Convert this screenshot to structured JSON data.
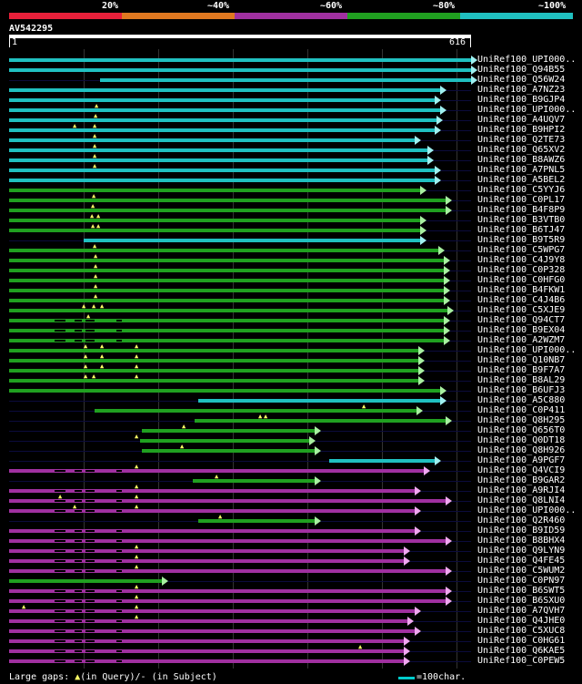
{
  "legend": {
    "labels": [
      "20%",
      "~40%",
      "~60%",
      "~80%",
      "~100%"
    ],
    "colors": [
      "#e8203a",
      "#e07820",
      "#a030a0",
      "#20a020",
      "#20c0c0"
    ]
  },
  "query": {
    "name": "AV542295",
    "start": "1",
    "end": "616"
  },
  "row_color_codes": {
    "c": "#20c0c0",
    "g": "#20a020",
    "m": "#a030a0"
  },
  "rows": [
    {
      "label": "UniRef100_UPI000..",
      "color": "c",
      "start": 10,
      "end": 518
    },
    {
      "label": "UniRef100_Q94B55",
      "color": "c",
      "start": 10,
      "end": 518
    },
    {
      "label": "UniRef100_Q56W24",
      "color": "c",
      "start": 110,
      "end": 518
    },
    {
      "label": "UniRef100_A7NZ23",
      "color": "c",
      "start": 10,
      "end": 484
    },
    {
      "label": "UniRef100_B9GJP4",
      "color": "c",
      "start": 10,
      "end": 478
    },
    {
      "label": "UniRef100_UPI000..",
      "color": "c",
      "start": 10,
      "end": 484
    },
    {
      "label": "UniRef100_A4UQV7",
      "color": "c",
      "start": 10,
      "end": 480
    },
    {
      "label": "UniRef100_B9HPI2",
      "color": "c",
      "start": 10,
      "end": 478
    },
    {
      "label": "UniRef100_Q2TE73",
      "color": "c",
      "start": 10,
      "end": 456
    },
    {
      "label": "UniRef100_Q65XV2",
      "color": "c",
      "start": 10,
      "end": 470
    },
    {
      "label": "UniRef100_B8AWZ6",
      "color": "c",
      "start": 10,
      "end": 470
    },
    {
      "label": "UniRef100_A7PNL5",
      "color": "c",
      "start": 10,
      "end": 478
    },
    {
      "label": "UniRef100_A5BEL2",
      "color": "c",
      "start": 10,
      "end": 478
    },
    {
      "label": "UniRef100_C5YYJ6",
      "color": "g",
      "start": 10,
      "end": 462
    },
    {
      "label": "UniRef100_C0PL17",
      "color": "g",
      "start": 10,
      "end": 490
    },
    {
      "label": "UniRef100_B4F8P9",
      "color": "g",
      "start": 10,
      "end": 490
    },
    {
      "label": "UniRef100_B3VTB0",
      "color": "g",
      "start": 10,
      "end": 462
    },
    {
      "label": "UniRef100_B6TJ47",
      "color": "g",
      "start": 10,
      "end": 462
    },
    {
      "label": "UniRef100_B9T5R9",
      "color": "c",
      "start": 92,
      "end": 462
    },
    {
      "label": "UniRef100_C5WPG7",
      "color": "g",
      "start": 10,
      "end": 482
    },
    {
      "label": "UniRef100_C4J9Y8",
      "color": "g",
      "start": 10,
      "end": 488
    },
    {
      "label": "UniRef100_C0P328",
      "color": "g",
      "start": 10,
      "end": 488
    },
    {
      "label": "UniRef100_C0HFG0",
      "color": "g",
      "start": 10,
      "end": 488
    },
    {
      "label": "UniRef100_B4FKW1",
      "color": "g",
      "start": 10,
      "end": 488
    },
    {
      "label": "UniRef100_C4J4B6",
      "color": "g",
      "start": 10,
      "end": 488
    },
    {
      "label": "UniRef100_C5XJE9",
      "color": "g",
      "start": 10,
      "end": 492
    },
    {
      "label": "UniRef100_Q94CT7",
      "color": "g",
      "start": 10,
      "end": 488
    },
    {
      "label": "UniRef100_B9EX04",
      "color": "g",
      "start": 10,
      "end": 488
    },
    {
      "label": "UniRef100_A2WZM7",
      "color": "g",
      "start": 10,
      "end": 488
    },
    {
      "label": "UniRef100_UPI000..",
      "color": "g",
      "start": 10,
      "end": 460
    },
    {
      "label": "UniRef100_Q10NB7",
      "color": "g",
      "start": 10,
      "end": 460
    },
    {
      "label": "UniRef100_B9F7A7",
      "color": "g",
      "start": 10,
      "end": 460
    },
    {
      "label": "UniRef100_B8AL29",
      "color": "g",
      "start": 10,
      "end": 460
    },
    {
      "label": "UniRef100_B6UFJ3",
      "color": "g",
      "start": 10,
      "end": 484
    },
    {
      "label": "UniRef100_A5C880",
      "color": "c",
      "start": 218,
      "end": 484
    },
    {
      "label": "UniRef100_C0P411",
      "color": "g",
      "start": 104,
      "end": 458
    },
    {
      "label": "UniRef100_Q8H295",
      "color": "g",
      "start": 214,
      "end": 490
    },
    {
      "label": "UniRef100_Q656T0",
      "color": "g",
      "start": 156,
      "end": 346
    },
    {
      "label": "UniRef100_Q0DT18",
      "color": "g",
      "start": 154,
      "end": 340
    },
    {
      "label": "UniRef100_Q8H926",
      "color": "g",
      "start": 156,
      "end": 346
    },
    {
      "label": "UniRef100_A9PGF7",
      "color": "c",
      "start": 362,
      "end": 478
    },
    {
      "label": "UniRef100_Q4VCI9",
      "color": "m",
      "start": 10,
      "end": 466
    },
    {
      "label": "UniRef100_B9GAR2",
      "color": "g",
      "start": 212,
      "end": 346
    },
    {
      "label": "UniRef100_A9RJI4",
      "color": "m",
      "start": 10,
      "end": 456
    },
    {
      "label": "UniRef100_Q8LNI4",
      "color": "m",
      "start": 10,
      "end": 490
    },
    {
      "label": "UniRef100_UPI000..",
      "color": "m",
      "start": 10,
      "end": 456
    },
    {
      "label": "UniRef100_Q2R460",
      "color": "g",
      "start": 218,
      "end": 346
    },
    {
      "label": "UniRef100_B9ID59",
      "color": "m",
      "start": 10,
      "end": 456
    },
    {
      "label": "UniRef100_B8BHX4",
      "color": "m",
      "start": 10,
      "end": 490
    },
    {
      "label": "UniRef100_Q9LYN9",
      "color": "m",
      "start": 10,
      "end": 444
    },
    {
      "label": "UniRef100_Q4FE45",
      "color": "m",
      "start": 10,
      "end": 444
    },
    {
      "label": "UniRef100_C5WUM2",
      "color": "m",
      "start": 10,
      "end": 490
    },
    {
      "label": "UniRef100_C0PN97",
      "color": "g",
      "start": 10,
      "end": 178
    },
    {
      "label": "UniRef100_B6SWT5",
      "color": "m",
      "start": 10,
      "end": 490
    },
    {
      "label": "UniRef100_B6SXU0",
      "color": "m",
      "start": 10,
      "end": 490
    },
    {
      "label": "UniRef100_A7QVH7",
      "color": "m",
      "start": 10,
      "end": 456
    },
    {
      "label": "UniRef100_Q4JHE0",
      "color": "m",
      "start": 10,
      "end": 448
    },
    {
      "label": "UniRef100_C5XUC8",
      "color": "m",
      "start": 10,
      "end": 456
    },
    {
      "label": "UniRef100_C0HG61",
      "color": "m",
      "start": 10,
      "end": 444
    },
    {
      "label": "UniRef100_Q6KAE5",
      "color": "m",
      "start": 10,
      "end": 444
    },
    {
      "label": "UniRef100_C0PEW5",
      "color": "m",
      "start": 10,
      "end": 444
    }
  ],
  "footer": {
    "large_gaps": "Large gaps:",
    "in_query": "(in Query)/",
    "dash": "-",
    "in_subject": " (in Subject)",
    "gap_marker": "▲",
    "scale": "=100char."
  }
}
